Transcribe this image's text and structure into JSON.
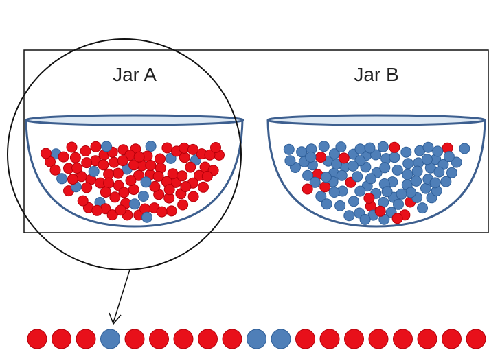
{
  "jars": [
    {
      "label": "Jar A",
      "red_count": 86,
      "blue_count": 14
    },
    {
      "label": "Jar B",
      "red_count": 14,
      "blue_count": 86
    }
  ],
  "sample_sequence": [
    "red",
    "red",
    "red",
    "blue",
    "red",
    "red",
    "red",
    "red",
    "red",
    "blue",
    "blue",
    "red",
    "red",
    "red",
    "red",
    "red",
    "red",
    "red",
    "red",
    "blue"
  ],
  "colors": {
    "red": "#e8101a",
    "blue": "#4f7fb8",
    "bowl_outline": "#3d5f8f",
    "bowl_rim_fill": "#dde8f3",
    "frame": "#111111"
  }
}
